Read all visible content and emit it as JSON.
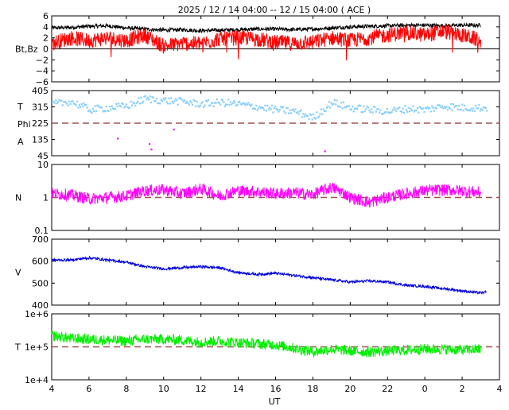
{
  "title": "2025 / 12 / 14   04:00 -- 12 / 15   04:00 ( ACE )",
  "xlabel": "UT",
  "x_ticks": [
    "4",
    "6",
    "8",
    "10",
    "12",
    "14",
    "16",
    "18",
    "20",
    "22",
    "0",
    "2",
    "4"
  ],
  "colors": {
    "bt": "#000000",
    "bz": "#ff0000",
    "theta": "#87cefa",
    "phi": "#ff00ff",
    "density": "#ff00ff",
    "velocity": "#0000dd",
    "temperature": "#00ee00",
    "ref_line": "#a05050"
  },
  "chart_data": [
    {
      "type": "line",
      "panel": "magnetic-field",
      "ylabel": "Bt,Bz",
      "y_ticks": [
        "6",
        "4",
        "2",
        "0",
        "−2",
        "−4",
        "−6"
      ],
      "ylim": [
        -6,
        6
      ],
      "x_range_hours_ut": [
        4,
        28
      ],
      "zero_line": 0,
      "series": [
        {
          "key": "bt",
          "points": [
            [
              4,
              3.8
            ],
            [
              5,
              3.9
            ],
            [
              6,
              4.1
            ],
            [
              7,
              4.2
            ],
            [
              8,
              3.8
            ],
            [
              9,
              3.6
            ],
            [
              10,
              3.4
            ],
            [
              11,
              3.5
            ],
            [
              12,
              3.3
            ],
            [
              13,
              3.4
            ],
            [
              14,
              3.5
            ],
            [
              15,
              3.6
            ],
            [
              16,
              3.6
            ],
            [
              17,
              3.5
            ],
            [
              18,
              3.6
            ],
            [
              19,
              3.8
            ],
            [
              20,
              4.0
            ],
            [
              21,
              4.1
            ],
            [
              22,
              4.2
            ],
            [
              23,
              4.3
            ],
            [
              24,
              4.3
            ],
            [
              25,
              4.2
            ],
            [
              26,
              4.3
            ],
            [
              27,
              4.3
            ]
          ]
        },
        {
          "key": "bz",
          "points": [
            [
              4,
              1.0
            ],
            [
              5,
              2.0
            ],
            [
              6,
              1.5
            ],
            [
              7,
              2.0
            ],
            [
              8,
              1.5
            ],
            [
              9,
              2.5
            ],
            [
              10,
              0.5
            ],
            [
              11,
              1.0
            ],
            [
              12,
              1.0
            ],
            [
              13,
              1.8
            ],
            [
              14,
              2.0
            ],
            [
              15,
              1.8
            ],
            [
              16,
              1.2
            ],
            [
              17,
              1.0
            ],
            [
              18,
              1.2
            ],
            [
              19,
              2.0
            ],
            [
              20,
              1.5
            ],
            [
              21,
              2.0
            ],
            [
              22,
              2.5
            ],
            [
              23,
              3.0
            ],
            [
              24,
              2.5
            ],
            [
              25,
              3.2
            ],
            [
              26,
              2.5
            ],
            [
              27,
              1.5
            ]
          ]
        }
      ]
    },
    {
      "type": "scatter",
      "panel": "field-angles",
      "ylabel_lines": [
        "T",
        "Phi",
        "A"
      ],
      "y_ticks": [
        "405",
        "315",
        "225",
        "135",
        "45"
      ],
      "ylim": [
        45,
        405
      ],
      "ref_line": 225,
      "series": [
        {
          "key": "theta",
          "points": [
            [
              4,
              330
            ],
            [
              5,
              345
            ],
            [
              6,
              300
            ],
            [
              7,
              310
            ],
            [
              8,
              320
            ],
            [
              9,
              360
            ],
            [
              10,
              350
            ],
            [
              11,
              345
            ],
            [
              12,
              330
            ],
            [
              13,
              340
            ],
            [
              14,
              330
            ],
            [
              15,
              315
            ],
            [
              16,
              300
            ],
            [
              17,
              290
            ],
            [
              18,
              255
            ],
            [
              19,
              340
            ],
            [
              20,
              310
            ],
            [
              21,
              300
            ],
            [
              22,
              290
            ],
            [
              23,
              305
            ],
            [
              24,
              300
            ],
            [
              25,
              320
            ],
            [
              26,
              310
            ],
            [
              27,
              310
            ]
          ]
        },
        {
          "key": "phi",
          "points": [
            [
              7.5,
              140
            ],
            [
              9.2,
              110
            ],
            [
              9.3,
              80
            ],
            [
              10.5,
              190
            ],
            [
              18.6,
              70
            ]
          ]
        }
      ]
    },
    {
      "type": "line",
      "panel": "density",
      "ylabel": "N",
      "y_ticks": [
        "10",
        "1",
        "0.1"
      ],
      "ylim": [
        0.1,
        10
      ],
      "y_scale": "log",
      "ref_line": 1,
      "series": [
        {
          "key": "density",
          "points": [
            [
              4,
              1.3
            ],
            [
              5,
              1.2
            ],
            [
              6,
              0.9
            ],
            [
              7,
              1.0
            ],
            [
              8,
              1.1
            ],
            [
              9,
              1.6
            ],
            [
              10,
              1.7
            ],
            [
              11,
              1.3
            ],
            [
              12,
              1.8
            ],
            [
              13,
              1.1
            ],
            [
              14,
              1.6
            ],
            [
              15,
              1.5
            ],
            [
              16,
              1.3
            ],
            [
              17,
              1.4
            ],
            [
              18,
              1.2
            ],
            [
              19,
              2.0
            ],
            [
              20,
              1.0
            ],
            [
              21,
              0.7
            ],
            [
              22,
              1.0
            ],
            [
              23,
              1.3
            ],
            [
              24,
              1.6
            ],
            [
              25,
              1.7
            ],
            [
              26,
              1.6
            ],
            [
              27,
              1.4
            ]
          ]
        }
      ]
    },
    {
      "type": "line",
      "panel": "velocity",
      "ylabel": "V",
      "y_ticks": [
        "700",
        "600",
        "500",
        "400"
      ],
      "ylim": [
        400,
        700
      ],
      "series": [
        {
          "key": "velocity",
          "points": [
            [
              4,
              605
            ],
            [
              5,
              605
            ],
            [
              6,
              615
            ],
            [
              7,
              605
            ],
            [
              8,
              595
            ],
            [
              9,
              575
            ],
            [
              10,
              565
            ],
            [
              11,
              570
            ],
            [
              12,
              575
            ],
            [
              13,
              570
            ],
            [
              14,
              548
            ],
            [
              15,
              540
            ],
            [
              16,
              545
            ],
            [
              17,
              535
            ],
            [
              18,
              525
            ],
            [
              19,
              515
            ],
            [
              20,
              505
            ],
            [
              21,
              510
            ],
            [
              22,
              505
            ],
            [
              23,
              490
            ],
            [
              24,
              485
            ],
            [
              25,
              475
            ],
            [
              26,
              465
            ],
            [
              27,
              455
            ],
            [
              27.3,
              460
            ]
          ]
        }
      ]
    },
    {
      "type": "line",
      "panel": "temperature",
      "ylabel": "T",
      "y_ticks": [
        "1e+6",
        "1e+5",
        "1e+4"
      ],
      "ylim": [
        10000,
        1000000
      ],
      "y_scale": "log",
      "ref_line": 100000,
      "series": [
        {
          "key": "temperature",
          "points": [
            [
              4,
              220000
            ],
            [
              5,
              180000
            ],
            [
              6,
              170000
            ],
            [
              7,
              160000
            ],
            [
              8,
              150000
            ],
            [
              9,
              170000
            ],
            [
              10,
              170000
            ],
            [
              11,
              160000
            ],
            [
              12,
              140000
            ],
            [
              13,
              150000
            ],
            [
              14,
              135000
            ],
            [
              15,
              125000
            ],
            [
              16,
              115000
            ],
            [
              17,
              90000
            ],
            [
              18,
              70000
            ],
            [
              19,
              85000
            ],
            [
              20,
              75000
            ],
            [
              21,
              70000
            ],
            [
              22,
              75000
            ],
            [
              23,
              80000
            ],
            [
              24,
              85000
            ],
            [
              25,
              85000
            ],
            [
              26,
              80000
            ],
            [
              27,
              85000
            ]
          ]
        }
      ]
    }
  ]
}
